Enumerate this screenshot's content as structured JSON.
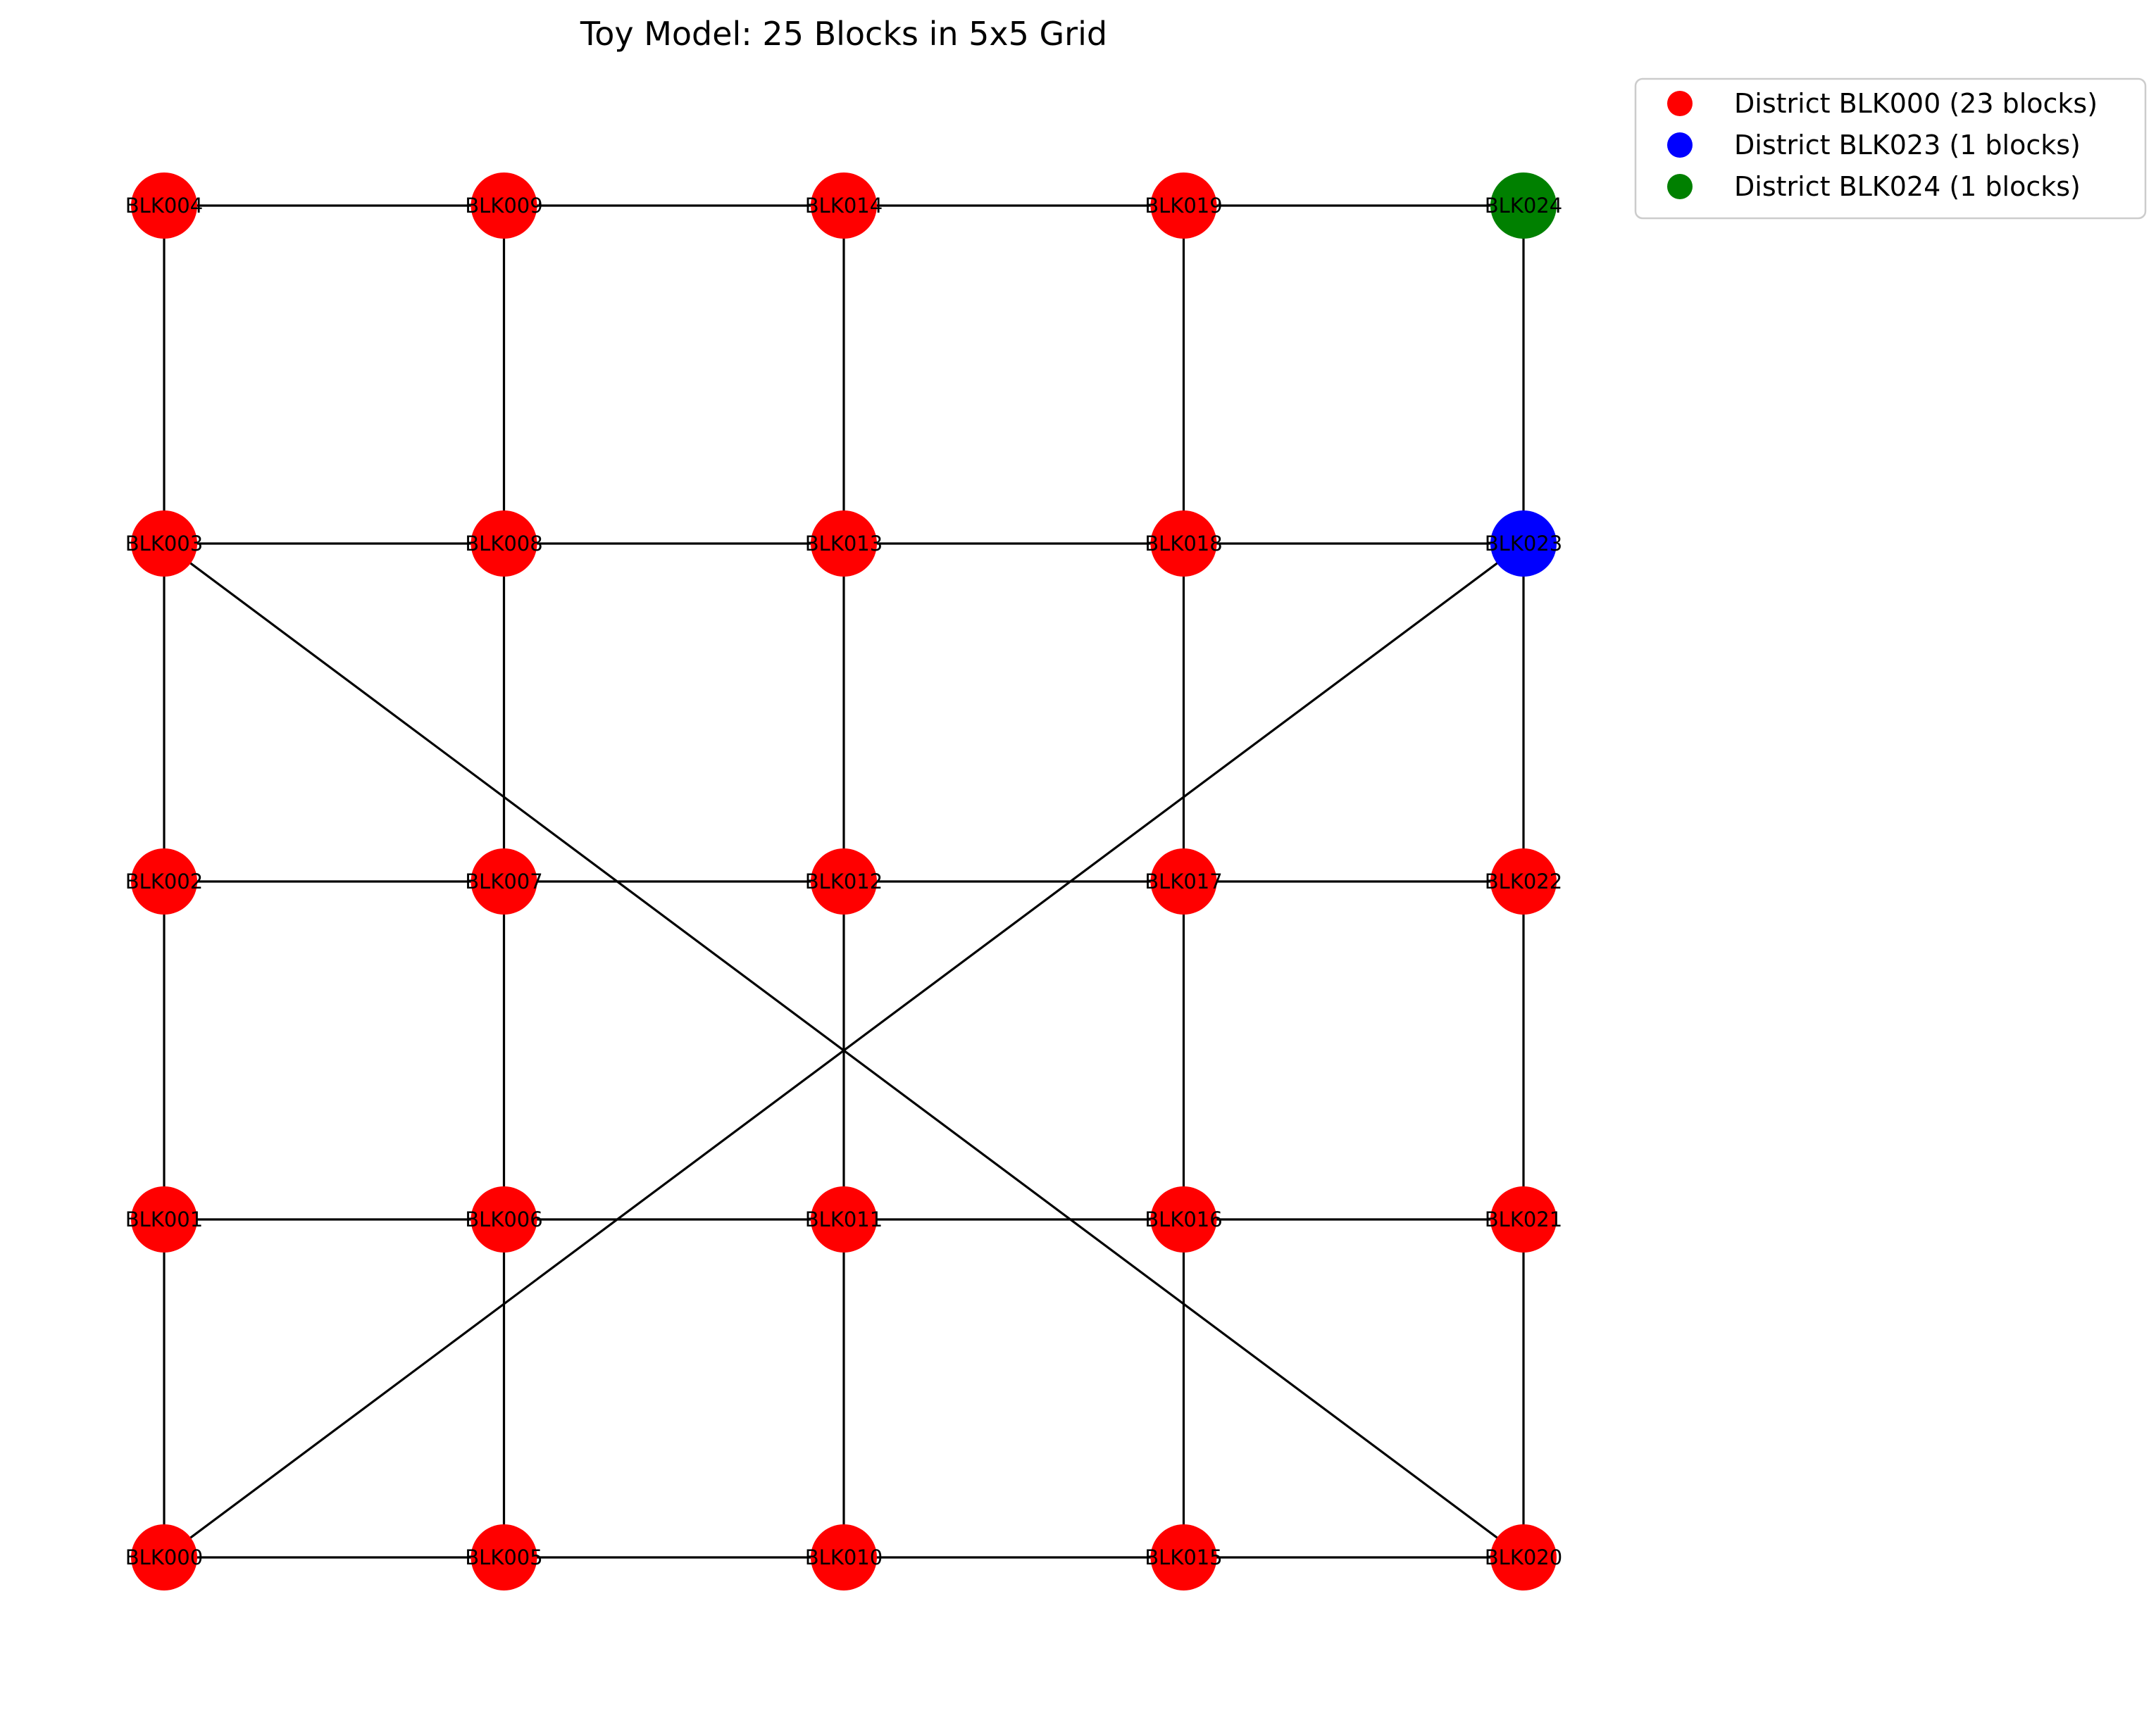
{
  "title": "Toy Model: 25 Blocks in 5x5 Grid",
  "colors": {
    "edge": "#000000",
    "legend_border": "#cccccc"
  },
  "nodes": [
    {
      "id": "BLK000",
      "col": 0,
      "row": 0,
      "color": "#ff0000"
    },
    {
      "id": "BLK001",
      "col": 0,
      "row": 1,
      "color": "#ff0000"
    },
    {
      "id": "BLK002",
      "col": 0,
      "row": 2,
      "color": "#ff0000"
    },
    {
      "id": "BLK003",
      "col": 0,
      "row": 3,
      "color": "#ff0000"
    },
    {
      "id": "BLK004",
      "col": 0,
      "row": 4,
      "color": "#ff0000"
    },
    {
      "id": "BLK005",
      "col": 1,
      "row": 0,
      "color": "#ff0000"
    },
    {
      "id": "BLK006",
      "col": 1,
      "row": 1,
      "color": "#ff0000"
    },
    {
      "id": "BLK007",
      "col": 1,
      "row": 2,
      "color": "#ff0000"
    },
    {
      "id": "BLK008",
      "col": 1,
      "row": 3,
      "color": "#ff0000"
    },
    {
      "id": "BLK009",
      "col": 1,
      "row": 4,
      "color": "#ff0000"
    },
    {
      "id": "BLK010",
      "col": 2,
      "row": 0,
      "color": "#ff0000"
    },
    {
      "id": "BLK011",
      "col": 2,
      "row": 1,
      "color": "#ff0000"
    },
    {
      "id": "BLK012",
      "col": 2,
      "row": 2,
      "color": "#ff0000"
    },
    {
      "id": "BLK013",
      "col": 2,
      "row": 3,
      "color": "#ff0000"
    },
    {
      "id": "BLK014",
      "col": 2,
      "row": 4,
      "color": "#ff0000"
    },
    {
      "id": "BLK015",
      "col": 3,
      "row": 0,
      "color": "#ff0000"
    },
    {
      "id": "BLK016",
      "col": 3,
      "row": 1,
      "color": "#ff0000"
    },
    {
      "id": "BLK017",
      "col": 3,
      "row": 2,
      "color": "#ff0000"
    },
    {
      "id": "BLK018",
      "col": 3,
      "row": 3,
      "color": "#ff0000"
    },
    {
      "id": "BLK019",
      "col": 3,
      "row": 4,
      "color": "#ff0000"
    },
    {
      "id": "BLK020",
      "col": 4,
      "row": 0,
      "color": "#ff0000"
    },
    {
      "id": "BLK021",
      "col": 4,
      "row": 1,
      "color": "#ff0000"
    },
    {
      "id": "BLK022",
      "col": 4,
      "row": 2,
      "color": "#ff0000"
    },
    {
      "id": "BLK023",
      "col": 4,
      "row": 3,
      "color": "#0000ff"
    },
    {
      "id": "BLK024",
      "col": 4,
      "row": 4,
      "color": "#008000"
    }
  ],
  "edges": [
    [
      "BLK000",
      "BLK005"
    ],
    [
      "BLK005",
      "BLK010"
    ],
    [
      "BLK010",
      "BLK015"
    ],
    [
      "BLK015",
      "BLK020"
    ],
    [
      "BLK001",
      "BLK006"
    ],
    [
      "BLK006",
      "BLK011"
    ],
    [
      "BLK011",
      "BLK016"
    ],
    [
      "BLK016",
      "BLK021"
    ],
    [
      "BLK002",
      "BLK007"
    ],
    [
      "BLK007",
      "BLK012"
    ],
    [
      "BLK012",
      "BLK017"
    ],
    [
      "BLK017",
      "BLK022"
    ],
    [
      "BLK003",
      "BLK008"
    ],
    [
      "BLK008",
      "BLK013"
    ],
    [
      "BLK013",
      "BLK018"
    ],
    [
      "BLK018",
      "BLK023"
    ],
    [
      "BLK004",
      "BLK009"
    ],
    [
      "BLK009",
      "BLK014"
    ],
    [
      "BLK014",
      "BLK019"
    ],
    [
      "BLK019",
      "BLK024"
    ],
    [
      "BLK000",
      "BLK001"
    ],
    [
      "BLK001",
      "BLK002"
    ],
    [
      "BLK002",
      "BLK003"
    ],
    [
      "BLK003",
      "BLK004"
    ],
    [
      "BLK005",
      "BLK006"
    ],
    [
      "BLK006",
      "BLK007"
    ],
    [
      "BLK007",
      "BLK008"
    ],
    [
      "BLK008",
      "BLK009"
    ],
    [
      "BLK010",
      "BLK011"
    ],
    [
      "BLK011",
      "BLK012"
    ],
    [
      "BLK012",
      "BLK013"
    ],
    [
      "BLK013",
      "BLK014"
    ],
    [
      "BLK015",
      "BLK016"
    ],
    [
      "BLK016",
      "BLK017"
    ],
    [
      "BLK017",
      "BLK018"
    ],
    [
      "BLK018",
      "BLK019"
    ],
    [
      "BLK020",
      "BLK021"
    ],
    [
      "BLK021",
      "BLK022"
    ],
    [
      "BLK022",
      "BLK023"
    ],
    [
      "BLK023",
      "BLK024"
    ],
    [
      "BLK003",
      "BLK020"
    ],
    [
      "BLK000",
      "BLK023"
    ]
  ],
  "legend": [
    {
      "label": "District BLK000 (23 blocks)",
      "color": "#ff0000"
    },
    {
      "label": "District BLK023 (1 blocks)",
      "color": "#0000ff"
    },
    {
      "label": "District BLK024 (1 blocks)",
      "color": "#008000"
    }
  ]
}
